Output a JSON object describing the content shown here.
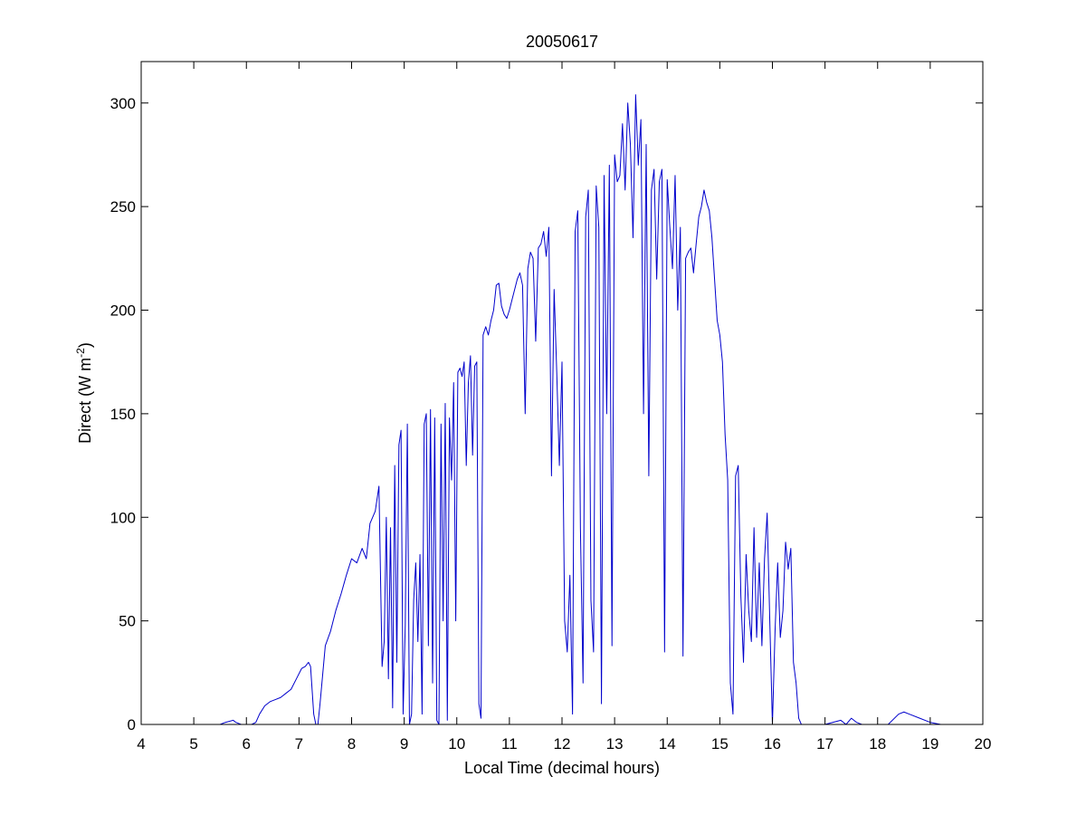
{
  "chart_data": {
    "type": "line",
    "title": "20050617",
    "xlabel": "Local Time (decimal hours)",
    "ylabel": {
      "main": "Direct (W m",
      "superscript": "-2",
      "close": ")"
    },
    "xlim": [
      4,
      20
    ],
    "ylim": [
      0,
      320
    ],
    "xticks": [
      4,
      5,
      6,
      7,
      8,
      9,
      10,
      11,
      12,
      13,
      14,
      15,
      16,
      17,
      18,
      19,
      20
    ],
    "yticks": [
      0,
      50,
      100,
      150,
      200,
      250,
      300
    ],
    "grid": false,
    "box": true,
    "colors": {
      "series": "#0000cc",
      "axes": "#000000"
    },
    "series": [
      {
        "x": [
          5.25,
          5.5,
          5.6,
          5.75,
          5.8,
          5.9,
          6.0,
          6.1,
          6.18,
          6.25,
          6.35,
          6.45,
          6.55,
          6.65,
          6.75,
          6.85,
          6.95,
          7.05,
          7.12,
          7.18,
          7.22,
          7.28,
          7.32,
          7.36,
          7.4,
          7.5,
          7.6,
          7.7,
          7.8,
          7.9,
          8.0,
          8.1,
          8.2,
          8.28,
          8.35,
          8.45,
          8.52,
          8.58,
          8.62,
          8.66,
          8.7,
          8.74,
          8.78,
          8.82,
          8.86,
          8.9,
          8.94,
          8.98,
          9.02,
          9.06,
          9.1,
          9.14,
          9.18,
          9.22,
          9.26,
          9.3,
          9.34,
          9.38,
          9.42,
          9.46,
          9.5,
          9.54,
          9.58,
          9.62,
          9.66,
          9.7,
          9.74,
          9.78,
          9.82,
          9.86,
          9.9,
          9.94,
          9.98,
          10.02,
          10.06,
          10.1,
          10.14,
          10.18,
          10.22,
          10.26,
          10.3,
          10.34,
          10.38,
          10.42,
          10.46,
          10.5,
          10.55,
          10.6,
          10.65,
          10.7,
          10.75,
          10.8,
          10.85,
          10.9,
          10.95,
          11.0,
          11.05,
          11.1,
          11.15,
          11.2,
          11.25,
          11.3,
          11.35,
          11.4,
          11.45,
          11.5,
          11.55,
          11.6,
          11.65,
          11.7,
          11.75,
          11.8,
          11.85,
          11.9,
          11.95,
          12.0,
          12.05,
          12.1,
          12.15,
          12.2,
          12.25,
          12.3,
          12.35,
          12.4,
          12.45,
          12.5,
          12.55,
          12.6,
          12.65,
          12.7,
          12.75,
          12.8,
          12.85,
          12.9,
          12.95,
          13.0,
          13.05,
          13.1,
          13.15,
          13.2,
          13.25,
          13.3,
          13.35,
          13.4,
          13.45,
          13.5,
          13.55,
          13.6,
          13.65,
          13.7,
          13.75,
          13.8,
          13.85,
          13.9,
          13.95,
          14.0,
          14.05,
          14.1,
          14.15,
          14.2,
          14.25,
          14.3,
          14.35,
          14.4,
          14.45,
          14.5,
          14.55,
          14.6,
          14.65,
          14.7,
          14.75,
          14.8,
          14.85,
          14.9,
          14.95,
          15.0,
          15.05,
          15.1,
          15.15,
          15.2,
          15.25,
          15.3,
          15.35,
          15.4,
          15.45,
          15.5,
          15.55,
          15.6,
          15.65,
          15.7,
          15.75,
          15.8,
          15.85,
          15.9,
          15.95,
          16.0,
          16.05,
          16.1,
          16.15,
          16.2,
          16.25,
          16.3,
          16.35,
          16.4,
          16.45,
          16.5,
          16.55,
          16.6,
          16.65,
          16.7,
          17.0,
          17.3,
          17.4,
          17.5,
          17.6,
          17.7,
          17.8,
          18.0,
          18.2,
          18.4,
          18.5,
          18.6,
          18.8,
          19.0,
          19.2,
          19.4
        ],
        "y": [
          0,
          0,
          1,
          2,
          1,
          0,
          0,
          0,
          1,
          5,
          9,
          11,
          12,
          13,
          15,
          17,
          22,
          27,
          28,
          30,
          28,
          5,
          0,
          0,
          10,
          38,
          45,
          55,
          63,
          72,
          80,
          78,
          85,
          80,
          97,
          103,
          115,
          28,
          40,
          100,
          22,
          95,
          8,
          125,
          30,
          135,
          142,
          5,
          48,
          145,
          0,
          5,
          60,
          78,
          40,
          82,
          5,
          145,
          150,
          38,
          152,
          20,
          148,
          2,
          0,
          145,
          50,
          155,
          2,
          148,
          118,
          165,
          50,
          170,
          172,
          168,
          175,
          125,
          165,
          178,
          130,
          173,
          175,
          10,
          3,
          188,
          192,
          188,
          195,
          200,
          212,
          213,
          202,
          198,
          196,
          200,
          205,
          210,
          215,
          218,
          212,
          150,
          220,
          228,
          225,
          185,
          230,
          232,
          238,
          226,
          240,
          120,
          210,
          170,
          125,
          175,
          50,
          35,
          72,
          5,
          238,
          248,
          95,
          20,
          245,
          258,
          60,
          35,
          260,
          240,
          10,
          265,
          150,
          270,
          38,
          275,
          262,
          265,
          290,
          258,
          300,
          280,
          235,
          304,
          270,
          292,
          150,
          280,
          120,
          258,
          268,
          215,
          262,
          268,
          35,
          263,
          240,
          220,
          265,
          200,
          240,
          33,
          225,
          228,
          230,
          218,
          232,
          245,
          250,
          258,
          252,
          248,
          235,
          215,
          195,
          188,
          175,
          140,
          118,
          20,
          5,
          120,
          125,
          62,
          30,
          82,
          55,
          40,
          95,
          42,
          78,
          38,
          80,
          102,
          50,
          0,
          45,
          78,
          42,
          55,
          88,
          75,
          85,
          30,
          20,
          3,
          0,
          0,
          0,
          0,
          0,
          2,
          0,
          3,
          1,
          0,
          0,
          0,
          0,
          5,
          6,
          5,
          3,
          1,
          0,
          0
        ]
      }
    ]
  }
}
